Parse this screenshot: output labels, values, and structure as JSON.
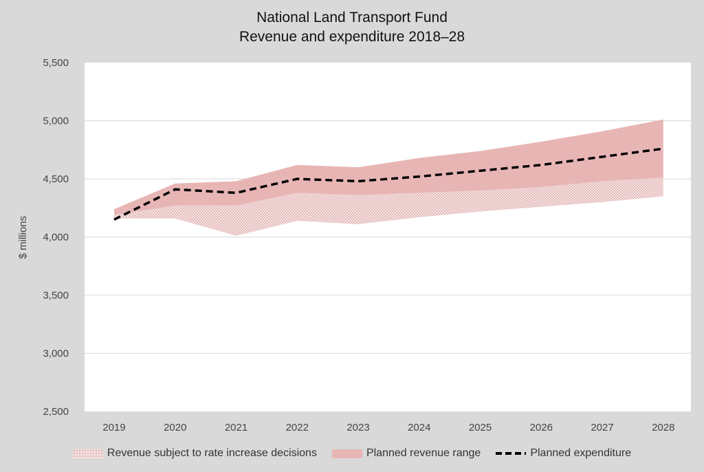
{
  "chart_data": {
    "type": "area",
    "title": "National Land Transport Fund",
    "subtitle": "Revenue and expenditure 2018–28",
    "ylabel": "$ millions",
    "xlabel": "",
    "categories": [
      "2019",
      "2020",
      "2021",
      "2022",
      "2023",
      "2024",
      "2025",
      "2026",
      "2027",
      "2028"
    ],
    "ylim": [
      2500,
      5500
    ],
    "yticks": [
      2500,
      3000,
      3500,
      4000,
      4500,
      5000,
      5500
    ],
    "ytick_labels": [
      "2,500",
      "3,000",
      "3,500",
      "4,000",
      "4,500",
      "5,000",
      "5,500"
    ],
    "grid": true,
    "legend_position": "bottom",
    "series": [
      {
        "name": "Revenue subject to rate increase decisions",
        "kind": "band",
        "lower": [
          4160,
          4160,
          4010,
          4140,
          4110,
          4170,
          4220,
          4260,
          4300,
          4350
        ],
        "upper": [
          4190,
          4270,
          4270,
          4380,
          4360,
          4380,
          4400,
          4430,
          4480,
          4510
        ],
        "color": "#d9a0a0"
      },
      {
        "name": "Planned revenue range",
        "kind": "band",
        "lower": [
          4190,
          4270,
          4270,
          4380,
          4360,
          4380,
          4400,
          4430,
          4480,
          4510
        ],
        "upper": [
          4240,
          4460,
          4480,
          4620,
          4600,
          4680,
          4740,
          4820,
          4910,
          5010
        ],
        "color": "#e8b5b5"
      },
      {
        "name": "Planned expenditure",
        "kind": "line",
        "values": [
          4150,
          4410,
          4380,
          4500,
          4480,
          4520,
          4570,
          4620,
          4690,
          4760
        ],
        "color": "#000000"
      }
    ]
  }
}
